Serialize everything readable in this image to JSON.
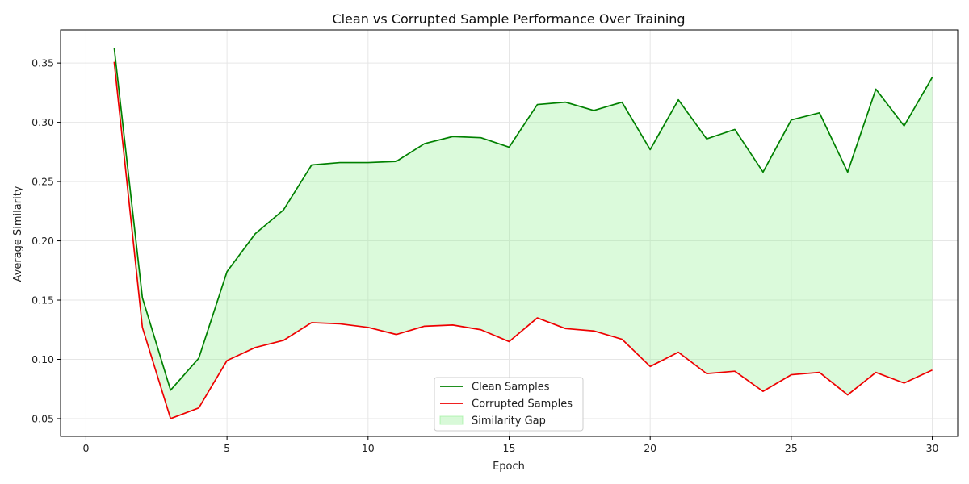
{
  "chart_data": {
    "type": "line",
    "title": "Clean vs Corrupted Sample Performance Over Training",
    "xlabel": "Epoch",
    "ylabel": "Average Similarity",
    "xlim": [
      -0.9,
      30.9
    ],
    "ylim": [
      0.035,
      0.378
    ],
    "xticks": [
      0,
      5,
      10,
      15,
      20,
      25,
      30
    ],
    "yticks": [
      0.05,
      0.1,
      0.15,
      0.2,
      0.25,
      0.3,
      0.35
    ],
    "grid": true,
    "legend_position": "lower-center",
    "x": [
      1,
      2,
      3,
      4,
      5,
      6,
      7,
      8,
      9,
      10,
      11,
      12,
      13,
      14,
      15,
      16,
      17,
      18,
      19,
      20,
      21,
      22,
      23,
      24,
      25,
      26,
      27,
      28,
      29,
      30
    ],
    "series": [
      {
        "name": "Clean Samples",
        "color": "#008000",
        "values": [
          0.363,
          0.152,
          0.074,
          0.101,
          0.174,
          0.206,
          0.226,
          0.264,
          0.266,
          0.266,
          0.267,
          0.282,
          0.288,
          0.287,
          0.279,
          0.315,
          0.317,
          0.31,
          0.317,
          0.277,
          0.319,
          0.286,
          0.294,
          0.258,
          0.302,
          0.308,
          0.258,
          0.328,
          0.297,
          0.338
        ]
      },
      {
        "name": "Corrupted Samples",
        "color": "#ee0000",
        "values": [
          0.351,
          0.127,
          0.05,
          0.059,
          0.099,
          0.11,
          0.116,
          0.131,
          0.13,
          0.127,
          0.121,
          0.128,
          0.129,
          0.125,
          0.115,
          0.135,
          0.126,
          0.124,
          0.117,
          0.094,
          0.106,
          0.088,
          0.09,
          0.073,
          0.087,
          0.089,
          0.07,
          0.089,
          0.08,
          0.091
        ]
      }
    ],
    "fill_between": {
      "name": "Similarity Gap",
      "color": "#90ee90",
      "opacity": 0.32
    }
  }
}
